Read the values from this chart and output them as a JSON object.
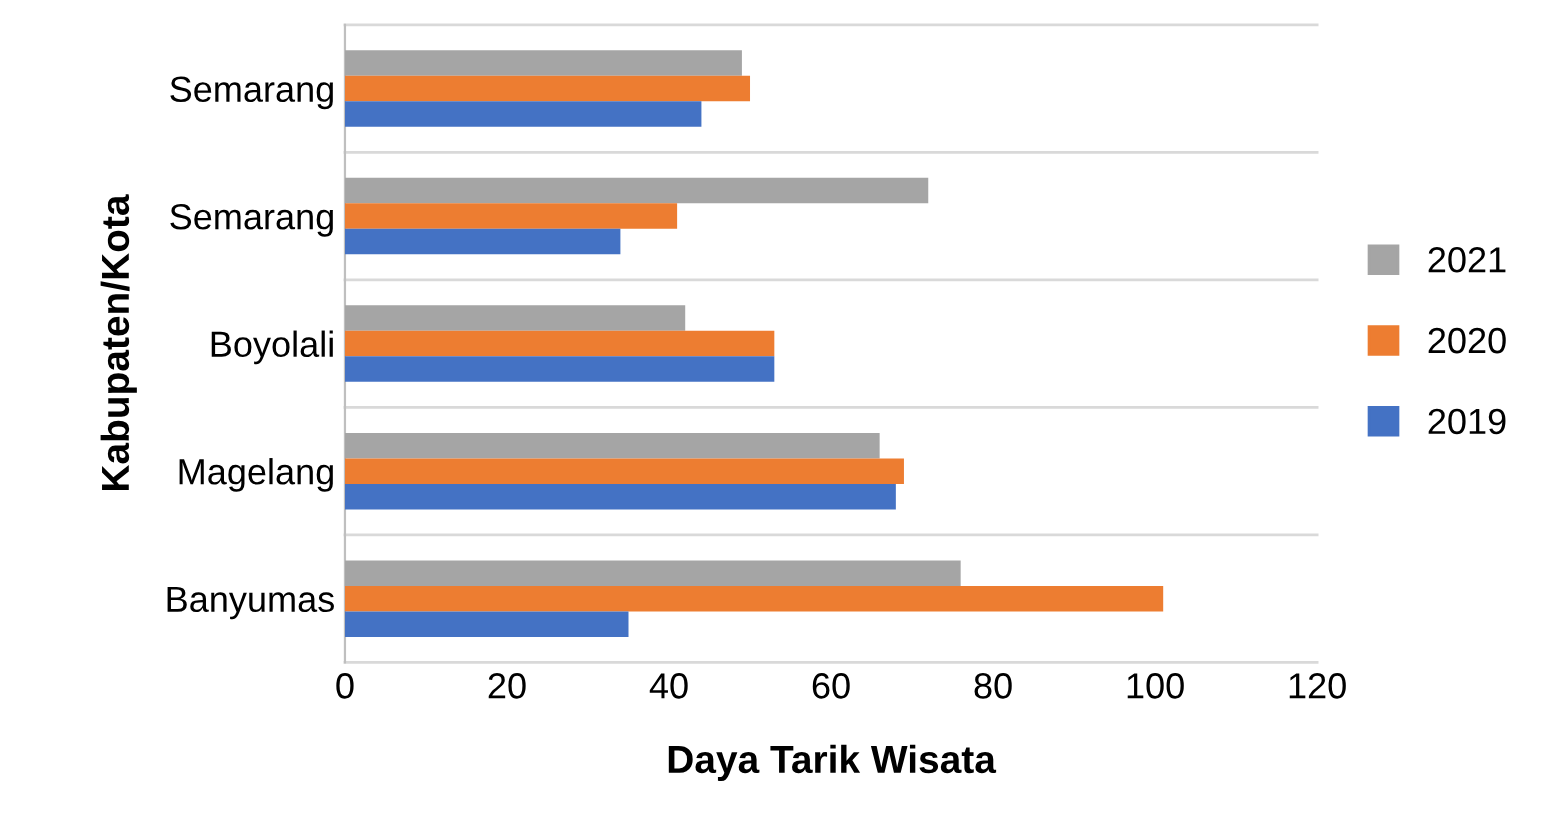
{
  "chart_data": {
    "type": "bar",
    "orientation": "horizontal",
    "xlabel": "Daya Tarik Wisata",
    "ylabel": "Kabupaten/Kota",
    "categories": [
      "Semarang",
      "Semarang",
      "Boyolali",
      "Magelang",
      "Banyumas"
    ],
    "series": [
      {
        "name": "2021",
        "color": "#a5a5a5",
        "values": [
          49,
          72,
          42,
          66,
          76
        ]
      },
      {
        "name": "2020",
        "color": "#ed7d31",
        "values": [
          50,
          41,
          53,
          69,
          101
        ]
      },
      {
        "name": "2019",
        "color": "#4472c4",
        "values": [
          44,
          34,
          53,
          68,
          35
        ]
      }
    ],
    "xlim": [
      0,
      120
    ],
    "xticks": [
      0,
      20,
      40,
      60,
      80,
      100,
      120
    ],
    "grid": "y",
    "legend": "right"
  }
}
